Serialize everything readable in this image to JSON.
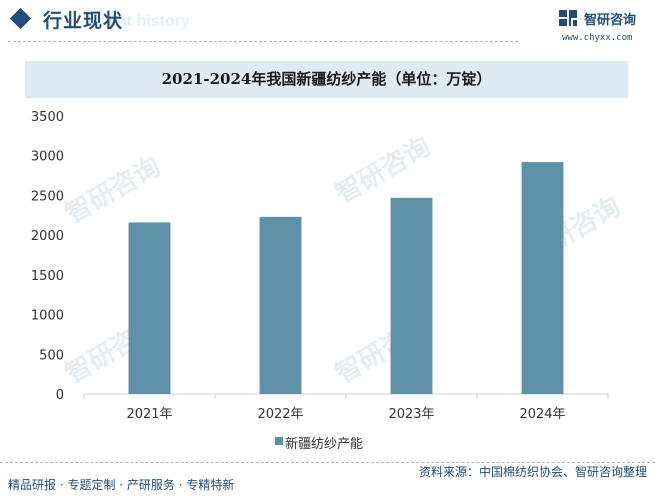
{
  "header": {
    "section_title": "行业现状",
    "ghost_text": "ent history",
    "brand_name": "智研咨询",
    "brand_url": "www.chyxx.com"
  },
  "watermark_text": "智研咨询",
  "chart_data": {
    "type": "bar",
    "title": "2021-2024年我国新疆纺纱产能（单位：万锭）",
    "categories": [
      "2021年",
      "2022年",
      "2023年",
      "2024年"
    ],
    "series": [
      {
        "name": "新疆纺纱产能",
        "values": [
          2160,
          2230,
          2470,
          2920
        ]
      }
    ],
    "ylim": [
      0,
      3500
    ],
    "yticks": [
      0,
      500,
      1000,
      1500,
      2000,
      2500,
      3000,
      3500
    ],
    "ytick_labels": [
      "0",
      "500",
      "1000",
      "1500",
      "2000",
      "2500",
      "3000",
      "3500"
    ],
    "bar_color": "#5e91a8",
    "grid": false,
    "legend_position": "bottom"
  },
  "footer": {
    "tags": "精品研报 · 专题定制 · 产研服务 · 专精特新",
    "source": "资料来源：中国棉纺织协会、智研咨询整理"
  },
  "colors": {
    "brand": "#1f4e79",
    "title_band": "#deeaf4"
  }
}
